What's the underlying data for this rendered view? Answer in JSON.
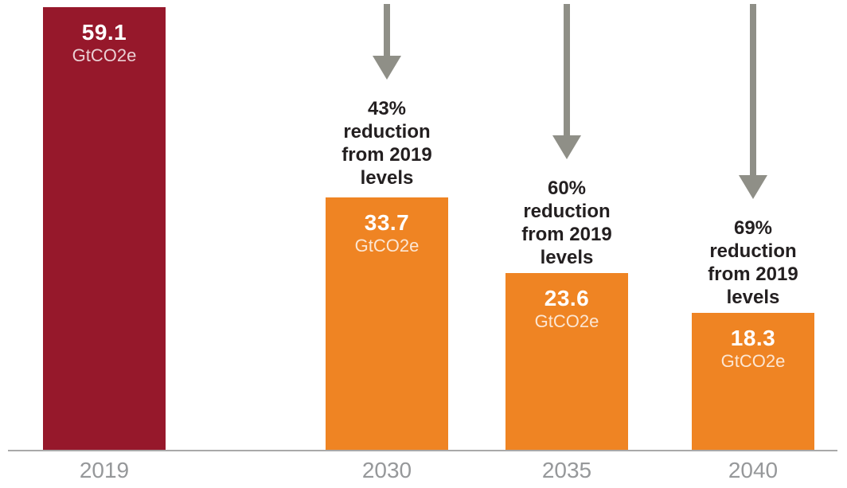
{
  "colors": {
    "bar_2019": "#96182B",
    "bar_future": "#EF8423",
    "arrow": "#8F8F87",
    "axis_line": "#A9A9A9",
    "axis_label": "#96989A",
    "annotation_text": "#231F20",
    "bar_value_text": "#FFFFFF"
  },
  "chart_data": {
    "type": "bar",
    "title": "",
    "xlabel": "",
    "ylabel": "",
    "unit": "GtCO2e",
    "ylim": [
      0,
      59.1
    ],
    "grid": false,
    "legend": false,
    "categories": [
      "2019",
      "2030",
      "2035",
      "2040"
    ],
    "values": [
      59.1,
      33.7,
      23.6,
      18.3
    ],
    "bars": [
      {
        "category": "2019",
        "value": 59.1,
        "value_label": "59.1",
        "unit_label": "GtCO2e",
        "color": "#96182B",
        "annotation": null
      },
      {
        "category": "2030",
        "value": 33.7,
        "value_label": "33.7",
        "unit_label": "GtCO2e",
        "color": "#EF8423",
        "annotation": "43% reduction from 2019 levels"
      },
      {
        "category": "2035",
        "value": 23.6,
        "value_label": "23.6",
        "unit_label": "GtCO2e",
        "color": "#EF8423",
        "annotation": "60% reduction from 2019 levels"
      },
      {
        "category": "2040",
        "value": 18.3,
        "value_label": "18.3",
        "unit_label": "GtCO2e",
        "color": "#EF8423",
        "annotation": "69% reduction from 2019 levels"
      }
    ]
  }
}
